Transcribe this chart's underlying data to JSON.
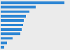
{
  "values": [
    530,
    290,
    240,
    210,
    195,
    185,
    175,
    165,
    100,
    55,
    30
  ],
  "bar_color": "#2d86d4",
  "background_color": "#ebebeb",
  "plot_background": "#ebebeb",
  "figsize": [
    1.0,
    0.71
  ],
  "dpi": 100
}
